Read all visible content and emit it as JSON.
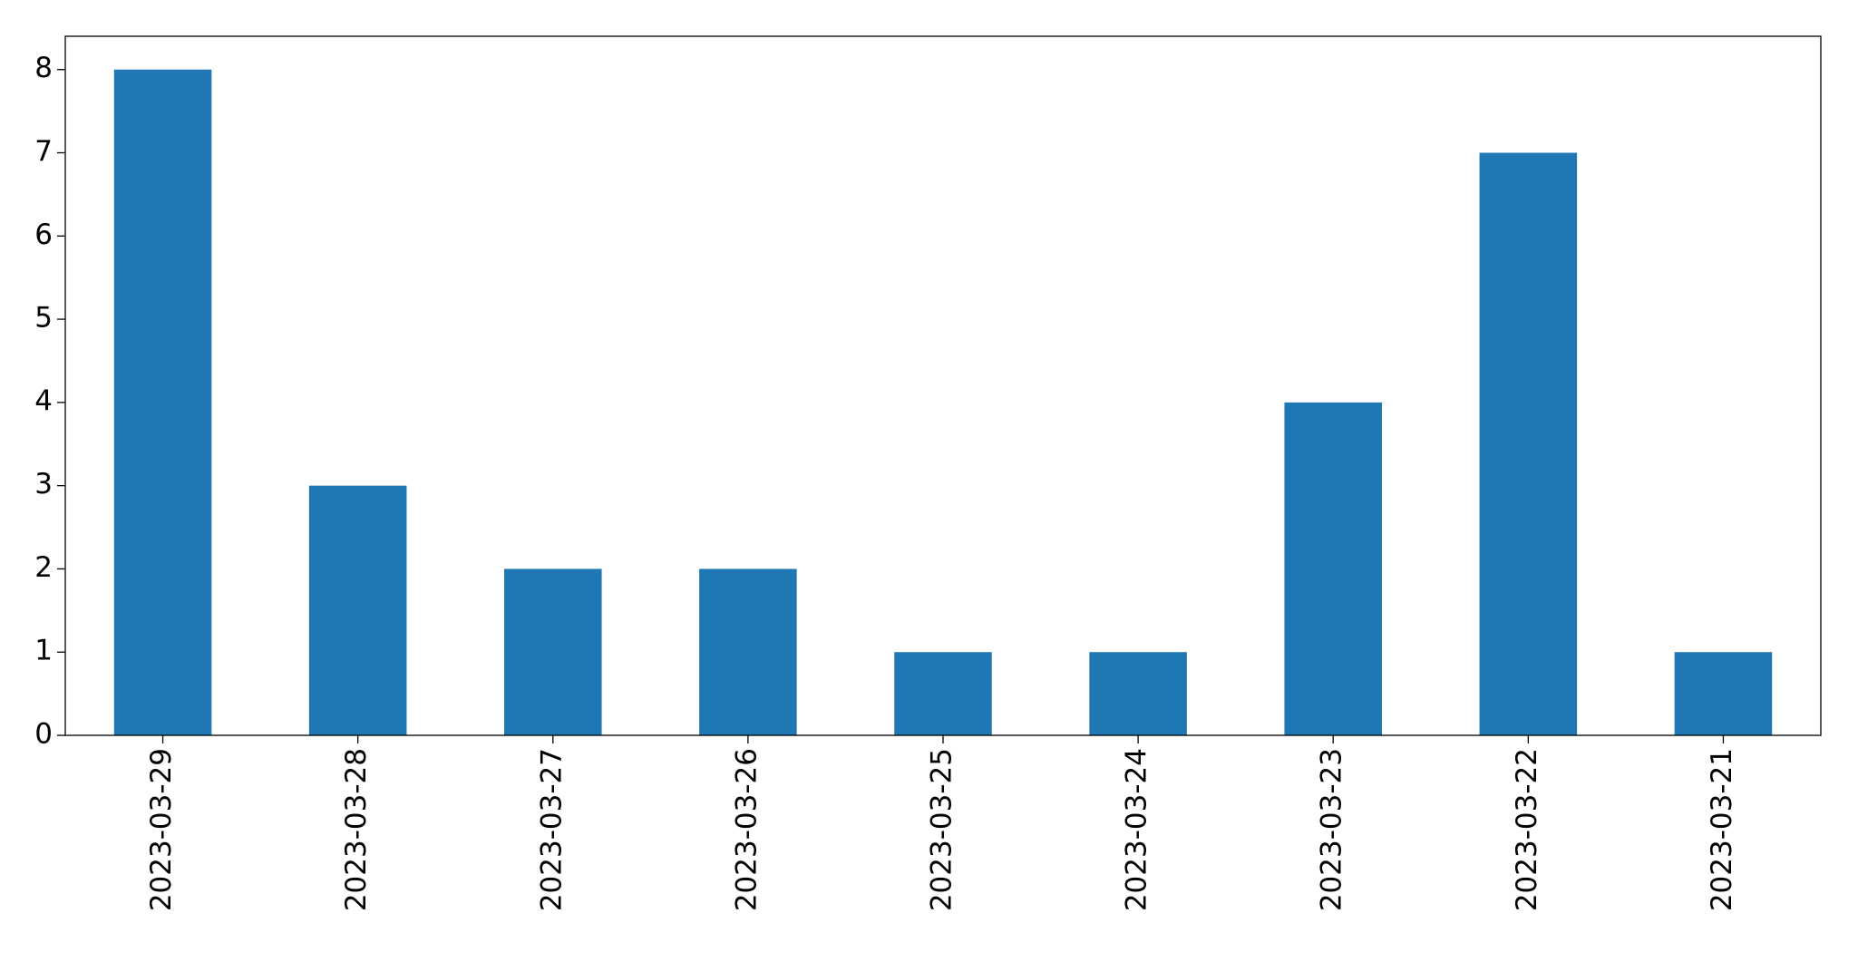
{
  "chart_data": {
    "type": "bar",
    "categories": [
      "2023-03-29",
      "2023-03-28",
      "2023-03-27",
      "2023-03-26",
      "2023-03-25",
      "2023-03-24",
      "2023-03-23",
      "2023-03-22",
      "2023-03-21"
    ],
    "values": [
      8,
      3,
      2,
      2,
      1,
      1,
      4,
      7,
      1
    ],
    "color": "#1f77b4",
    "ylim": [
      0,
      8.4
    ],
    "yticks": [
      0,
      1,
      2,
      3,
      4,
      5,
      6,
      7,
      8
    ],
    "grid": false
  }
}
